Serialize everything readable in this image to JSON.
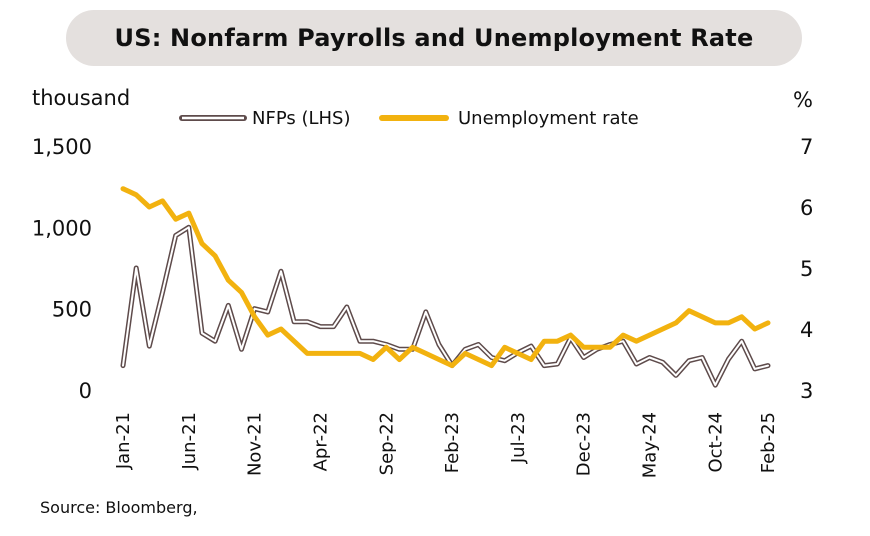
{
  "title": "US: Nonfarm Payrolls and Unemployment Rate",
  "left_unit": "thousand",
  "right_unit": "%",
  "source": "Source: Bloomberg,",
  "colors": {
    "nfp": "#5e4b4b",
    "unemployment": "#f2b20f",
    "title_bg": "#e4e0de"
  },
  "chart_data": {
    "type": "line",
    "title": "US: Nonfarm Payrolls and Unemployment Rate",
    "x_tick_labels": [
      "Jan-21",
      "Jun-21",
      "Nov-21",
      "Apr-22",
      "Sep-22",
      "Feb-23",
      "Jul-23",
      "Dec-23",
      "May-24",
      "Oct-24",
      "Feb-25"
    ],
    "y_left": {
      "label": "thousand",
      "range": [
        0,
        1500
      ],
      "ticks": [
        "0",
        "500",
        "1,000",
        "1,500"
      ]
    },
    "y_right": {
      "label": "%",
      "range": [
        3,
        7
      ],
      "ticks": [
        "3",
        "4",
        "5",
        "6",
        "7"
      ]
    },
    "legend": [
      "NFPs (LHS)",
      "Unemployment rate"
    ],
    "legend_position": "top-center",
    "grid": false,
    "months": [
      "Jan-21",
      "Feb-21",
      "Mar-21",
      "Apr-21",
      "May-21",
      "Jun-21",
      "Jul-21",
      "Aug-21",
      "Sep-21",
      "Oct-21",
      "Nov-21",
      "Dec-21",
      "Jan-22",
      "Feb-22",
      "Mar-22",
      "Apr-22",
      "May-22",
      "Jun-22",
      "Jul-22",
      "Aug-22",
      "Sep-22",
      "Oct-22",
      "Nov-22",
      "Dec-22",
      "Jan-23",
      "Feb-23",
      "Mar-23",
      "Apr-23",
      "May-23",
      "Jun-23",
      "Jul-23",
      "Aug-23",
      "Sep-23",
      "Oct-23",
      "Nov-23",
      "Dec-23",
      "Jan-24",
      "Feb-24",
      "Mar-24",
      "Apr-24",
      "May-24",
      "Jun-24",
      "Jul-24",
      "Aug-24",
      "Sep-24",
      "Oct-24",
      "Nov-24",
      "Dec-24",
      "Jan-25",
      "Feb-25"
    ],
    "series": [
      {
        "name": "NFPs (LHS)",
        "axis": "left",
        "style": "double-line",
        "values": [
          150,
          750,
          270,
          600,
          950,
          1000,
          350,
          300,
          520,
          250,
          500,
          480,
          730,
          420,
          420,
          390,
          390,
          510,
          300,
          300,
          280,
          250,
          250,
          480,
          280,
          150,
          250,
          280,
          200,
          180,
          230,
          270,
          150,
          160,
          320,
          200,
          250,
          280,
          300,
          160,
          200,
          170,
          90,
          180,
          200,
          30,
          190,
          300,
          130,
          150
        ]
      },
      {
        "name": "Unemployment rate",
        "axis": "right",
        "style": "solid",
        "values": [
          6.3,
          6.2,
          6.0,
          6.1,
          5.8,
          5.9,
          5.4,
          5.2,
          4.8,
          4.6,
          4.2,
          3.9,
          4.0,
          3.8,
          3.6,
          3.6,
          3.6,
          3.6,
          3.6,
          3.5,
          3.7,
          3.5,
          3.7,
          3.6,
          3.5,
          3.4,
          3.6,
          3.5,
          3.4,
          3.7,
          3.6,
          3.5,
          3.8,
          3.8,
          3.9,
          3.7,
          3.7,
          3.7,
          3.9,
          3.8,
          3.9,
          4.0,
          4.1,
          4.3,
          4.2,
          4.1,
          4.1,
          4.2,
          4.0,
          4.1
        ]
      }
    ]
  }
}
